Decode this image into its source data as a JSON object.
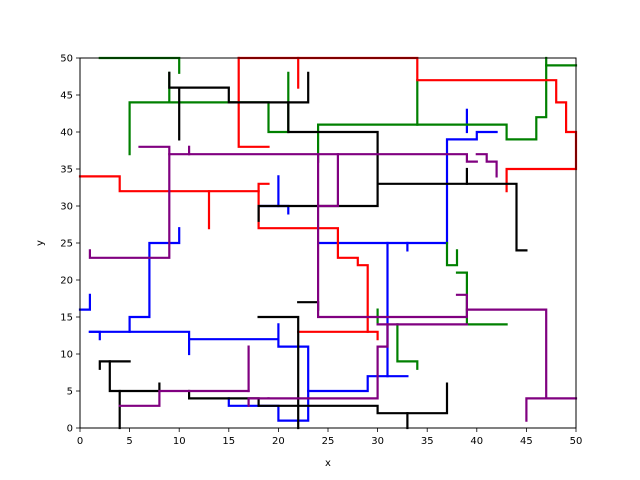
{
  "chart_data": {
    "type": "line",
    "title": "",
    "xlabel": "x",
    "ylabel": "y",
    "xlim": [
      0,
      50
    ],
    "ylim": [
      0,
      50
    ],
    "xticks": [
      "0",
      "5",
      "10",
      "15",
      "20",
      "25",
      "30",
      "35",
      "40",
      "45",
      "50"
    ],
    "yticks": [
      "0",
      "5",
      "10",
      "15",
      "20",
      "25",
      "30",
      "35",
      "40",
      "45",
      "50"
    ],
    "grid": false,
    "legend": "none",
    "colors": {
      "blue": "#0000ff",
      "green": "#008000",
      "red": "#ff0000",
      "black": "#000000",
      "purple": "#800080"
    },
    "series": [
      {
        "color": "#0000ff",
        "points": [
          [
            0,
            16
          ],
          [
            1,
            16
          ],
          [
            1,
            18
          ]
        ]
      },
      {
        "color": "#0000ff",
        "points": [
          [
            1,
            13
          ],
          [
            2,
            13
          ],
          [
            2,
            12
          ]
        ]
      },
      {
        "color": "#0000ff",
        "points": [
          [
            1,
            13
          ],
          [
            11,
            13
          ],
          [
            11,
            10
          ]
        ]
      },
      {
        "color": "#0000ff",
        "points": [
          [
            5,
            13
          ],
          [
            5,
            15
          ],
          [
            7,
            15
          ],
          [
            7,
            25
          ],
          [
            9,
            25
          ],
          [
            10,
            25
          ],
          [
            10,
            27
          ]
        ]
      },
      {
        "color": "#0000ff",
        "points": [
          [
            11,
            12
          ],
          [
            20,
            12
          ],
          [
            20,
            14
          ]
        ]
      },
      {
        "color": "#0000ff",
        "points": [
          [
            20,
            12
          ],
          [
            20,
            11
          ],
          [
            23,
            11
          ],
          [
            23,
            5
          ],
          [
            29,
            5
          ],
          [
            29,
            7
          ],
          [
            33,
            7
          ]
        ]
      },
      {
        "color": "#0000ff",
        "points": [
          [
            15,
            4
          ],
          [
            15,
            3
          ],
          [
            20,
            3
          ],
          [
            20,
            1
          ],
          [
            23,
            1
          ],
          [
            23,
            5
          ]
        ]
      },
      {
        "color": "#0000ff",
        "points": [
          [
            18,
            30
          ],
          [
            20,
            30
          ],
          [
            20,
            34
          ]
        ]
      },
      {
        "color": "#0000ff",
        "points": [
          [
            20,
            30
          ],
          [
            21,
            30
          ],
          [
            21,
            29
          ]
        ]
      },
      {
        "color": "#0000ff",
        "points": [
          [
            24,
            25
          ],
          [
            31,
            25
          ],
          [
            31,
            7
          ]
        ]
      },
      {
        "color": "#0000ff",
        "points": [
          [
            31,
            25
          ],
          [
            33,
            25
          ],
          [
            33,
            24
          ]
        ]
      },
      {
        "color": "#0000ff",
        "points": [
          [
            33,
            25
          ],
          [
            37,
            25
          ],
          [
            37,
            39
          ],
          [
            40,
            39
          ],
          [
            40,
            40
          ],
          [
            42,
            40
          ]
        ]
      },
      {
        "color": "#0000ff",
        "points": [
          [
            39,
            40
          ],
          [
            39,
            43
          ]
        ]
      },
      {
        "color": "#008000",
        "points": [
          [
            2,
            50
          ],
          [
            10,
            50
          ],
          [
            10,
            48
          ]
        ]
      },
      {
        "color": "#008000",
        "points": [
          [
            9,
            48
          ],
          [
            9,
            44
          ],
          [
            5,
            44
          ],
          [
            5,
            37
          ]
        ]
      },
      {
        "color": "#008000",
        "points": [
          [
            9,
            44
          ],
          [
            19,
            44
          ],
          [
            19,
            40
          ],
          [
            21,
            40
          ],
          [
            21,
            48
          ]
        ]
      },
      {
        "color": "#008000",
        "points": [
          [
            24,
            36
          ],
          [
            24,
            41
          ],
          [
            34,
            41
          ],
          [
            34,
            47
          ]
        ]
      },
      {
        "color": "#008000",
        "points": [
          [
            34,
            41
          ],
          [
            43,
            41
          ],
          [
            43,
            39
          ],
          [
            46,
            39
          ],
          [
            46,
            42
          ],
          [
            47,
            42
          ],
          [
            47,
            50
          ]
        ]
      },
      {
        "color": "#008000",
        "points": [
          [
            47,
            49
          ],
          [
            50,
            49
          ]
        ]
      },
      {
        "color": "#008000",
        "points": [
          [
            37,
            25
          ],
          [
            37,
            22
          ],
          [
            38,
            22
          ],
          [
            38,
            24
          ]
        ]
      },
      {
        "color": "#008000",
        "points": [
          [
            38,
            21
          ],
          [
            39,
            21
          ],
          [
            39,
            14
          ],
          [
            43,
            14
          ]
        ]
      },
      {
        "color": "#008000",
        "points": [
          [
            32,
            14
          ],
          [
            32,
            9
          ],
          [
            34,
            9
          ],
          [
            34,
            8
          ]
        ]
      },
      {
        "color": "#008000",
        "points": [
          [
            30,
            16
          ],
          [
            30,
            14
          ]
        ]
      },
      {
        "color": "#ff0000",
        "points": [
          [
            0,
            34
          ],
          [
            4,
            34
          ],
          [
            4,
            32
          ],
          [
            13,
            32
          ],
          [
            13,
            27
          ]
        ]
      },
      {
        "color": "#ff0000",
        "points": [
          [
            13,
            32
          ],
          [
            18,
            32
          ],
          [
            18,
            33
          ],
          [
            19,
            33
          ]
        ]
      },
      {
        "color": "#ff0000",
        "points": [
          [
            16,
            50
          ],
          [
            16,
            38
          ],
          [
            19,
            38
          ]
        ]
      },
      {
        "color": "#ff0000",
        "points": [
          [
            16,
            50
          ],
          [
            34,
            50
          ],
          [
            34,
            47
          ],
          [
            48,
            47
          ],
          [
            48,
            44
          ],
          [
            49,
            44
          ],
          [
            49,
            40
          ],
          [
            50,
            40
          ],
          [
            50,
            35
          ],
          [
            43,
            35
          ],
          [
            43,
            32
          ]
        ]
      },
      {
        "color": "#ff0000",
        "points": [
          [
            22,
            50
          ],
          [
            22,
            46
          ]
        ]
      },
      {
        "color": "#ff0000",
        "points": [
          [
            18,
            32
          ],
          [
            18,
            27
          ],
          [
            26,
            27
          ],
          [
            26,
            23
          ],
          [
            28,
            23
          ],
          [
            28,
            22
          ],
          [
            29,
            22
          ],
          [
            29,
            13
          ],
          [
            30,
            13
          ],
          [
            30,
            12
          ]
        ]
      },
      {
        "color": "#ff0000",
        "points": [
          [
            22,
            13
          ],
          [
            29,
            13
          ]
        ]
      },
      {
        "color": "#000000",
        "points": [
          [
            9,
            48
          ],
          [
            9,
            46
          ],
          [
            15,
            46
          ],
          [
            15,
            44
          ],
          [
            23,
            44
          ],
          [
            23,
            48
          ]
        ]
      },
      {
        "color": "#000000",
        "points": [
          [
            10,
            46
          ],
          [
            10,
            39
          ]
        ]
      },
      {
        "color": "#000000",
        "points": [
          [
            21,
            44
          ],
          [
            21,
            40
          ],
          [
            30,
            40
          ],
          [
            30,
            30
          ],
          [
            18,
            30
          ],
          [
            18,
            28
          ]
        ]
      },
      {
        "color": "#000000",
        "points": [
          [
            30,
            33
          ],
          [
            44,
            33
          ],
          [
            44,
            24
          ],
          [
            45,
            24
          ]
        ]
      },
      {
        "color": "#000000",
        "points": [
          [
            39,
            33
          ],
          [
            39,
            35
          ]
        ]
      },
      {
        "color": "#000000",
        "points": [
          [
            2,
            8
          ],
          [
            2,
            9
          ],
          [
            5,
            9
          ]
        ]
      },
      {
        "color": "#000000",
        "points": [
          [
            3,
            9
          ],
          [
            3,
            5
          ],
          [
            8,
            5
          ],
          [
            8,
            6
          ]
        ]
      },
      {
        "color": "#000000",
        "points": [
          [
            4,
            5
          ],
          [
            4,
            0
          ]
        ]
      },
      {
        "color": "#000000",
        "points": [
          [
            11,
            5
          ],
          [
            11,
            4
          ],
          [
            18,
            4
          ],
          [
            18,
            3
          ],
          [
            30,
            3
          ],
          [
            30,
            2
          ],
          [
            37,
            2
          ],
          [
            37,
            6
          ]
        ]
      },
      {
        "color": "#000000",
        "points": [
          [
            33,
            2
          ],
          [
            33,
            0
          ]
        ]
      },
      {
        "color": "#000000",
        "points": [
          [
            18,
            15
          ],
          [
            22,
            15
          ],
          [
            22,
            0
          ]
        ]
      },
      {
        "color": "#000000",
        "points": [
          [
            22,
            17
          ],
          [
            24,
            17
          ],
          [
            24,
            16
          ]
        ]
      },
      {
        "color": "#800080",
        "points": [
          [
            1,
            24
          ],
          [
            1,
            23
          ],
          [
            9,
            23
          ],
          [
            9,
            37
          ],
          [
            39,
            37
          ],
          [
            39,
            36
          ],
          [
            40,
            36
          ]
        ]
      },
      {
        "color": "#800080",
        "points": [
          [
            9,
            37
          ],
          [
            9,
            38
          ],
          [
            6,
            38
          ]
        ]
      },
      {
        "color": "#800080",
        "points": [
          [
            11,
            37
          ],
          [
            11,
            38
          ]
        ]
      },
      {
        "color": "#800080",
        "points": [
          [
            40,
            37
          ],
          [
            41,
            37
          ],
          [
            41,
            36
          ],
          [
            42,
            36
          ],
          [
            42,
            34
          ]
        ]
      },
      {
        "color": "#800080",
        "points": [
          [
            24,
            37
          ],
          [
            24,
            30
          ],
          [
            26,
            30
          ],
          [
            26,
            37
          ]
        ]
      },
      {
        "color": "#800080",
        "points": [
          [
            24,
            30
          ],
          [
            24,
            15
          ],
          [
            39,
            15
          ],
          [
            39,
            18
          ],
          [
            38,
            18
          ]
        ]
      },
      {
        "color": "#800080",
        "points": [
          [
            30,
            14
          ],
          [
            39,
            14
          ]
        ]
      },
      {
        "color": "#800080",
        "points": [
          [
            39,
            16
          ],
          [
            47,
            16
          ],
          [
            47,
            4
          ],
          [
            45,
            4
          ],
          [
            45,
            1
          ]
        ]
      },
      {
        "color": "#800080",
        "points": [
          [
            47,
            4
          ],
          [
            50,
            4
          ]
        ]
      },
      {
        "color": "#800080",
        "points": [
          [
            31,
            14
          ],
          [
            31,
            11
          ],
          [
            30,
            11
          ],
          [
            30,
            4
          ],
          [
            19,
            4
          ]
        ]
      },
      {
        "color": "#800080",
        "points": [
          [
            19,
            4
          ],
          [
            17,
            4
          ],
          [
            17,
            3
          ]
        ]
      },
      {
        "color": "#800080",
        "points": [
          [
            17,
            5
          ],
          [
            17,
            11
          ]
        ]
      },
      {
        "color": "#800080",
        "points": [
          [
            4,
            3
          ],
          [
            8,
            3
          ],
          [
            8,
            5
          ],
          [
            17,
            5
          ]
        ]
      }
    ]
  }
}
